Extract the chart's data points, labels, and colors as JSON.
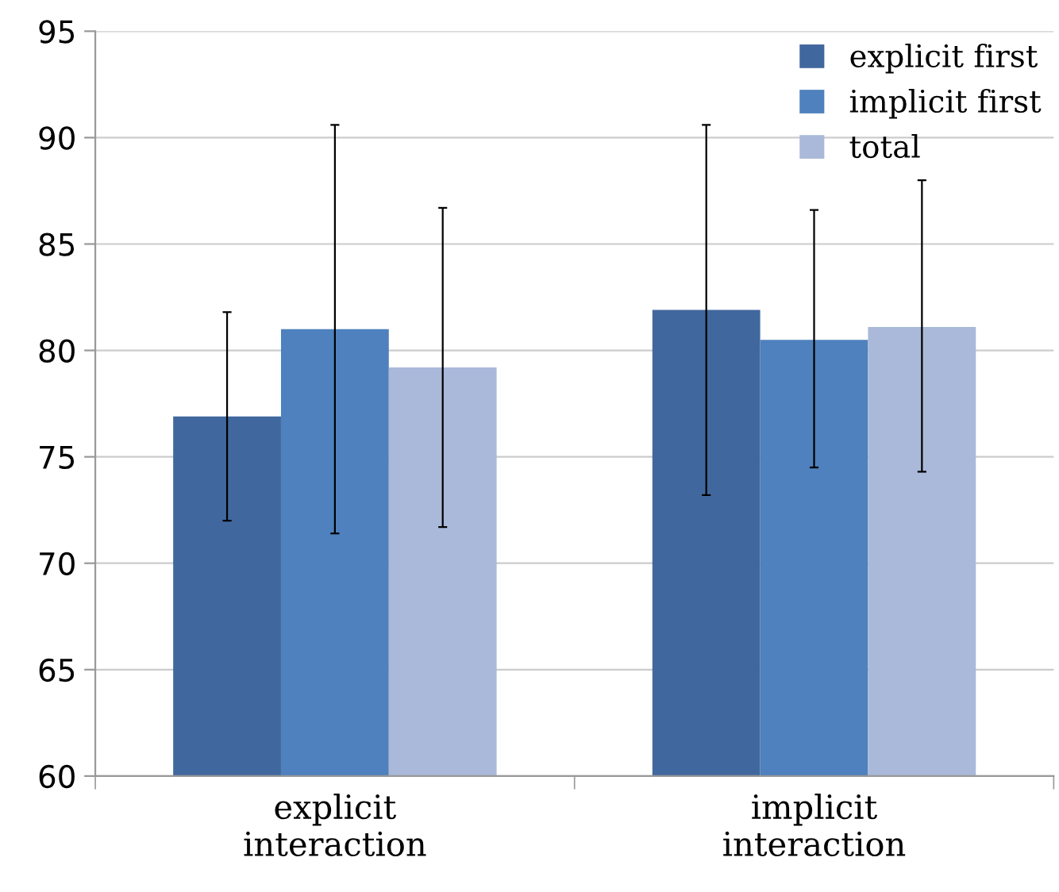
{
  "chart_data": {
    "type": "bar",
    "categories": [
      "explicit\ninteraction",
      "implicit\ninteraction"
    ],
    "series": [
      {
        "name": "explicit first",
        "color": "#41689e",
        "values": [
          76.9,
          81.9
        ],
        "errors": [
          [
            72.0,
            81.8
          ],
          [
            73.2,
            90.6
          ]
        ]
      },
      {
        "name": "implicit first",
        "color": "#4e81bd",
        "values": [
          81.0,
          80.5
        ],
        "errors": [
          [
            71.4,
            90.6
          ],
          [
            74.5,
            86.6
          ]
        ]
      },
      {
        "name": "total",
        "color": "#aab9d9",
        "values": [
          79.2,
          81.1
        ],
        "errors": [
          [
            71.7,
            86.7
          ],
          [
            74.3,
            88.0
          ]
        ]
      }
    ],
    "ylim": [
      60,
      95
    ],
    "yticks": [
      60,
      65,
      70,
      75,
      80,
      85,
      90,
      95
    ],
    "grid": "y",
    "legend": "top right"
  }
}
